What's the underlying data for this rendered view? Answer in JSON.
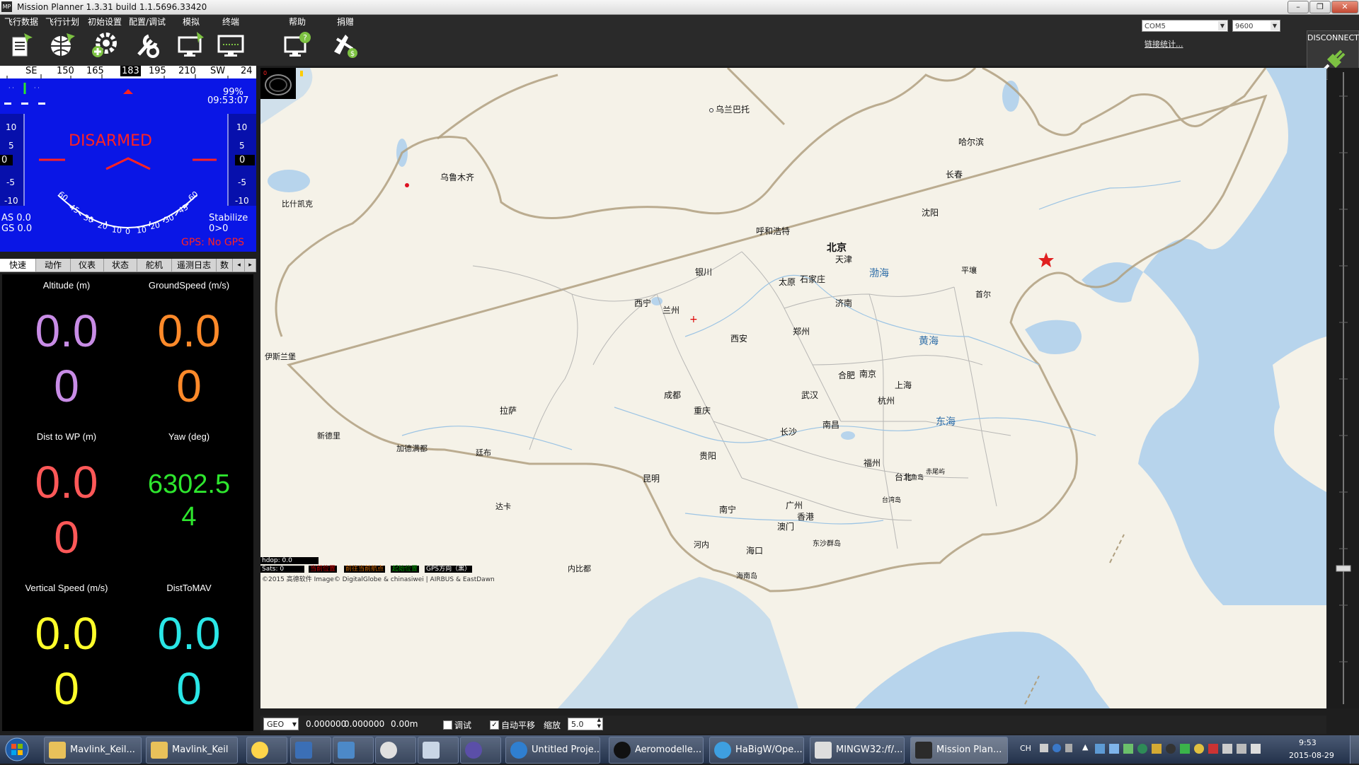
{
  "window": {
    "title": "Mission Planner 1.3.31 build 1.1.5696.33420",
    "icon_text": "MP",
    "controls": [
      "minimize-icon",
      "restore-icon",
      "close-icon"
    ]
  },
  "menu": [
    {
      "label": "飞行数据",
      "icon": "flight-data-icon"
    },
    {
      "label": "飞行计划",
      "icon": "flight-plan-icon"
    },
    {
      "label": "初始设置",
      "icon": "initial-setup-icon"
    },
    {
      "label": "配置/调试",
      "icon": "config-tuning-icon"
    },
    {
      "label": "模拟",
      "icon": "simulation-icon"
    },
    {
      "label": "终端",
      "icon": "terminal-icon"
    },
    {
      "label": "帮助",
      "icon": "help-icon"
    },
    {
      "label": "捐赠",
      "icon": "donate-icon"
    }
  ],
  "connection": {
    "port": "COM5",
    "baud": "9600",
    "link_stats": "链接统计...",
    "disconnect_label": "DISCONNECT"
  },
  "hud": {
    "heading_strip": [
      "SE",
      "150",
      "165",
      "183",
      "195",
      "210",
      "SW",
      "24"
    ],
    "current_heading": "183",
    "battery": "99%",
    "time": "09:53:07",
    "armed_status": "DISARMED",
    "airspeed": "AS 0.0",
    "groundspeed": "GS 0.0",
    "flight_mode": "Stabilize",
    "mode_extra": "0>0",
    "gps_status": "GPS: No GPS",
    "left_scale": [
      "10",
      "5",
      "0",
      "-5",
      "-10"
    ],
    "right_scale": [
      "10",
      "5",
      "0",
      "-5",
      "-10"
    ],
    "left_value": "0",
    "right_value": "0",
    "roll_scale_left": [
      "60",
      "45",
      "30",
      "20",
      "10"
    ],
    "roll_scale_right": [
      "10",
      "20",
      "30",
      "45",
      "60"
    ],
    "roll_center": "0",
    "colors": {
      "background": "#0a16e6",
      "armed": "#ff2222",
      "gps": "#ff2222"
    }
  },
  "tabs": [
    "快速",
    "动作",
    "仪表",
    "状态",
    "舵机",
    "遥测日志",
    "数"
  ],
  "active_tab": "快速",
  "quick": [
    {
      "label": "Altitude (m)",
      "value": "0.0",
      "value2": "0",
      "color": "#c88ce6"
    },
    {
      "label": "GroundSpeed (m/s)",
      "value": "0.0",
      "value2": "0",
      "color": "#ff8a2a"
    },
    {
      "label": "Dist to WP (m)",
      "value": "0.0",
      "value2": "0",
      "color": "#ff5858"
    },
    {
      "label": "Yaw (deg)",
      "value": "6302.5",
      "value2": "4",
      "color": "#2ee62e"
    },
    {
      "label": "Vertical Speed (m/s)",
      "value": "0.0",
      "value2": "0",
      "color": "#ffff2a"
    },
    {
      "label": "DistToMAV",
      "value": "0.0",
      "value2": "0",
      "color": "#2ae6e6"
    }
  ],
  "map": {
    "cities": [
      {
        "name": "乌兰巴托"
      },
      {
        "name": "乌鲁木齐"
      },
      {
        "name": "哈尔滨"
      },
      {
        "name": "长春"
      },
      {
        "name": "沈阳"
      },
      {
        "name": "比什凯克"
      },
      {
        "name": "呼和浩特"
      },
      {
        "name": "北京"
      },
      {
        "name": "天津"
      },
      {
        "name": "平壤"
      },
      {
        "name": "首尔"
      },
      {
        "name": "银川"
      },
      {
        "name": "太原"
      },
      {
        "name": "石家庄"
      },
      {
        "name": "济南"
      },
      {
        "name": "西宁"
      },
      {
        "name": "兰州"
      },
      {
        "name": "西安"
      },
      {
        "name": "郑州"
      },
      {
        "name": "伊斯兰堡"
      },
      {
        "name": "合肥"
      },
      {
        "name": "南京"
      },
      {
        "name": "上海"
      },
      {
        "name": "成都"
      },
      {
        "name": "武汉"
      },
      {
        "name": "杭州"
      },
      {
        "name": "拉萨"
      },
      {
        "name": "重庆"
      },
      {
        "name": "长沙"
      },
      {
        "name": "南昌"
      },
      {
        "name": "新德里"
      },
      {
        "name": "加德满都"
      },
      {
        "name": "廷布"
      },
      {
        "name": "贵阳"
      },
      {
        "name": "福州"
      },
      {
        "name": "昆明"
      },
      {
        "name": "台北"
      },
      {
        "name": "达卡"
      },
      {
        "name": "南宁"
      },
      {
        "name": "广州"
      },
      {
        "name": "香港"
      },
      {
        "name": "澳门"
      },
      {
        "name": "河内"
      },
      {
        "name": "海口"
      },
      {
        "name": "内比都"
      },
      {
        "name": "赤尾屿"
      },
      {
        "name": "钓鱼岛"
      },
      {
        "name": "台湾岛"
      },
      {
        "name": "东沙群岛"
      },
      {
        "name": "海南岛"
      }
    ],
    "seas": [
      "渤海",
      "黄海",
      "东海"
    ],
    "hdop": "hdop: 0.0",
    "sats": "Sats: 0",
    "legend": [
      "当前位置",
      "前往当前航点",
      "起始位置",
      "GPS方向（黑）"
    ],
    "legend_colors": [
      "#cc0000",
      "#cc6600",
      "#009900",
      "#000000"
    ],
    "copyright": "©2015 高德软件 Image© DigitalGlobe & chinasiwei | AIRBUS & EastDawn",
    "colors": {
      "land": "#f5f2e8",
      "water": "#b7d4ec",
      "border": "#b0a080"
    }
  },
  "map_toolbar": {
    "coord_type": "GEO",
    "lat": "0.000000",
    "lng": "0.000000",
    "alt": "0.00m",
    "debug_label": "调试",
    "autopan_label": "自动平移",
    "zoom_label": "缩放",
    "zoom_value": "5.0",
    "debug_checked": false,
    "autopan_checked": true
  },
  "taskbar": {
    "items": [
      {
        "label": "Mavlink_Keil...",
        "icon": "folder-icon"
      },
      {
        "label": "Mavlink_Keil",
        "icon": "folder-icon"
      },
      {
        "label": "",
        "icon": "search-icon"
      },
      {
        "label": "",
        "icon": "explorer-icon"
      },
      {
        "label": "",
        "icon": "network-icon"
      },
      {
        "label": "",
        "icon": "media-player-icon"
      },
      {
        "label": "",
        "icon": "calculator-icon"
      },
      {
        "label": "",
        "icon": "infinity-icon"
      },
      {
        "label": "Untitled Proje...",
        "icon": "proteus-icon"
      },
      {
        "label": "Aeromodelle...",
        "icon": "qq-icon"
      },
      {
        "label": "HaBigW/Ope...",
        "icon": "ie-icon"
      },
      {
        "label": "MINGW32:/f/...",
        "icon": "terminal-icon"
      },
      {
        "label": "Mission Plan...",
        "icon": "mission-planner-icon"
      }
    ],
    "lang": "CH",
    "time": "9:53",
    "date": "2015-08-29"
  }
}
